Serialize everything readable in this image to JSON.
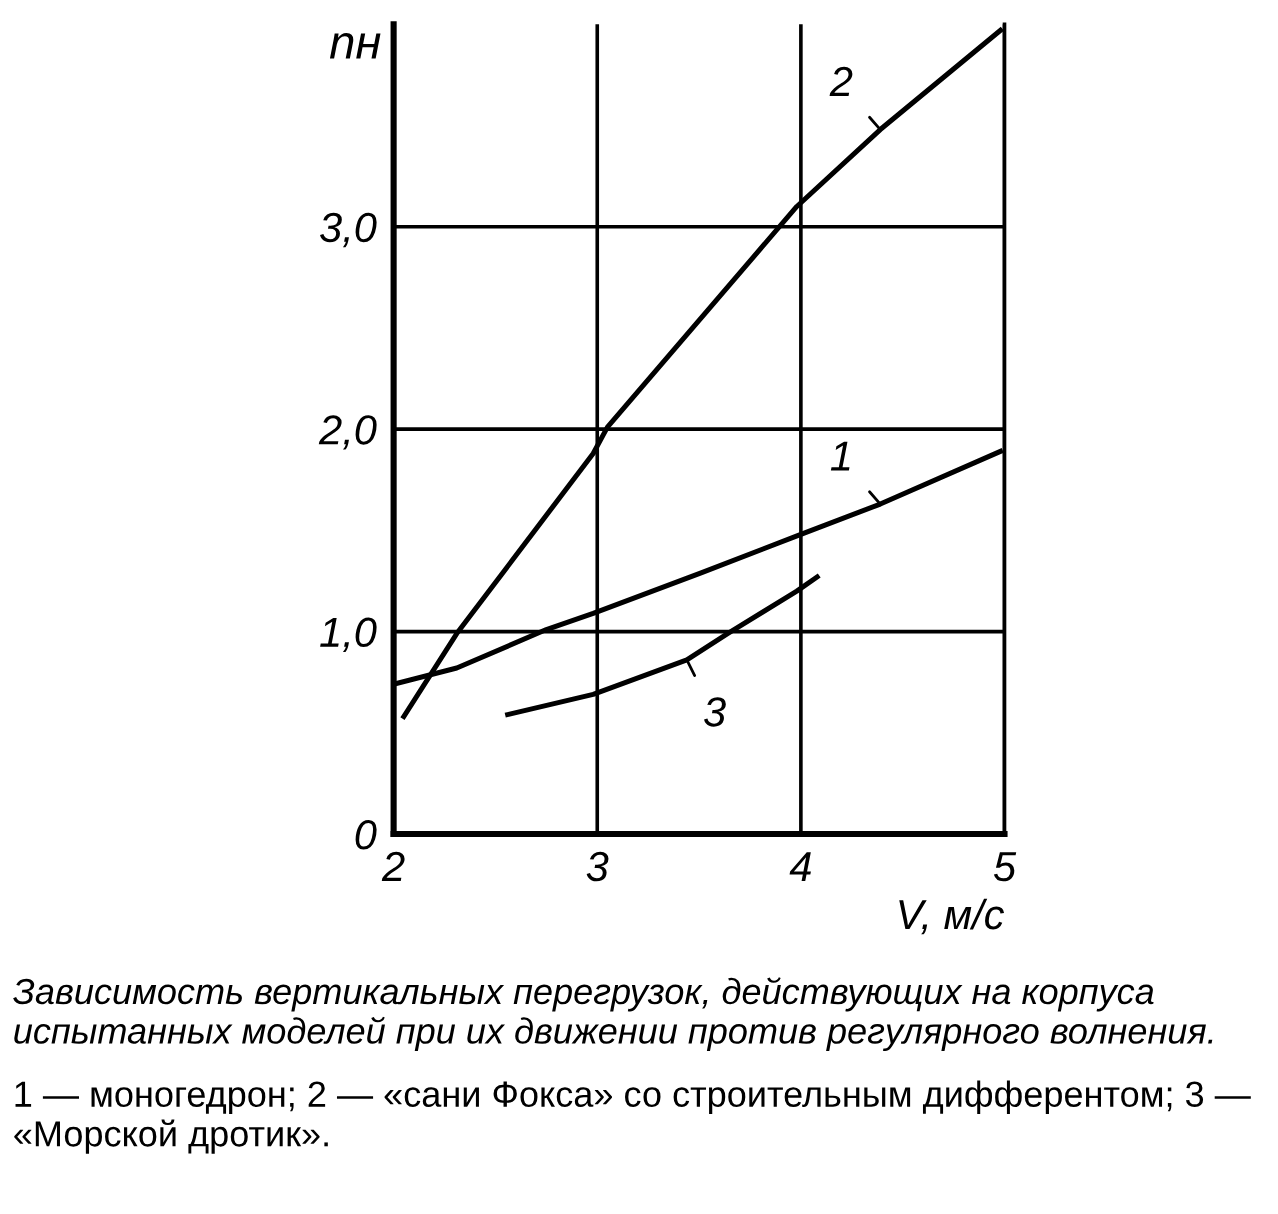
{
  "chart_data": {
    "type": "line",
    "xlabel": "V, м/с",
    "ylabel": "nн",
    "xlim": [
      2,
      5
    ],
    "xticks": [
      2,
      3,
      4,
      5
    ],
    "ylim": [
      0,
      4
    ],
    "yticks": [
      0,
      {
        "value": 1,
        "label": "1,0"
      },
      {
        "value": 2,
        "label": "2,0"
      },
      {
        "value": 3,
        "label": "3,0"
      }
    ],
    "grid": true,
    "marker": "none",
    "line_style": "solid",
    "series": [
      {
        "name": "1",
        "color": "#000000",
        "x": [
          2.0,
          2.31,
          2.75,
          2.98,
          3.51,
          4.0,
          4.39,
          4.98
        ],
        "values": [
          0.74,
          0.82,
          1.01,
          1.09,
          1.29,
          1.48,
          1.63,
          1.89
        ]
      },
      {
        "name": "2",
        "color": "#000000",
        "x": [
          2.05,
          2.31,
          2.98,
          3.05,
          3.98,
          4.39,
          4.98
        ],
        "values": [
          0.58,
          0.99,
          1.88,
          2.01,
          3.1,
          3.48,
          3.97
        ]
      },
      {
        "name": "3",
        "color": "#000000",
        "x": [
          2.56,
          2.98,
          3.44,
          3.64,
          3.98,
          4.08
        ],
        "values": [
          0.59,
          0.69,
          0.86,
          0.99,
          1.2,
          1.27
        ]
      }
    ],
    "annotations": [
      "Зависимость вертикальных перегрузок, действующих на корпуса испытанных моделей при их движении против регулярного волнения.",
      "1 — моногедрон; 2 — «сани Фокса» со строительным дифферентом; 3 — «Морской дротик»."
    ]
  }
}
